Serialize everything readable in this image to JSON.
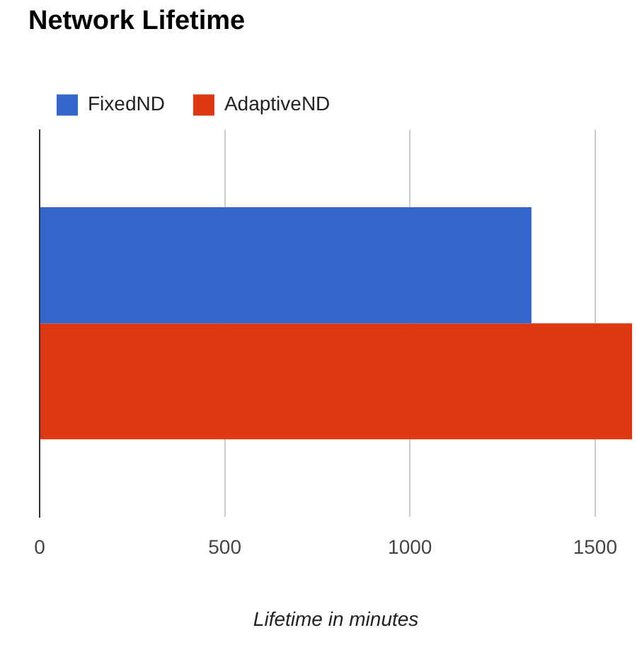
{
  "chart_data": {
    "type": "bar",
    "orientation": "horizontal",
    "title": "Network Lifetime",
    "xlabel": "Lifetime in minutes",
    "categories": [
      null
    ],
    "series": [
      {
        "name": "FixedND",
        "color": "#3366cc",
        "values": [
          1328
        ]
      },
      {
        "name": "AdaptiveND",
        "color": "#dc3912",
        "values": [
          1600
        ]
      }
    ],
    "xlim": [
      0,
      1600
    ],
    "xticks": [
      0,
      500,
      1000,
      1500
    ],
    "grid": "x",
    "legend": "top left"
  }
}
